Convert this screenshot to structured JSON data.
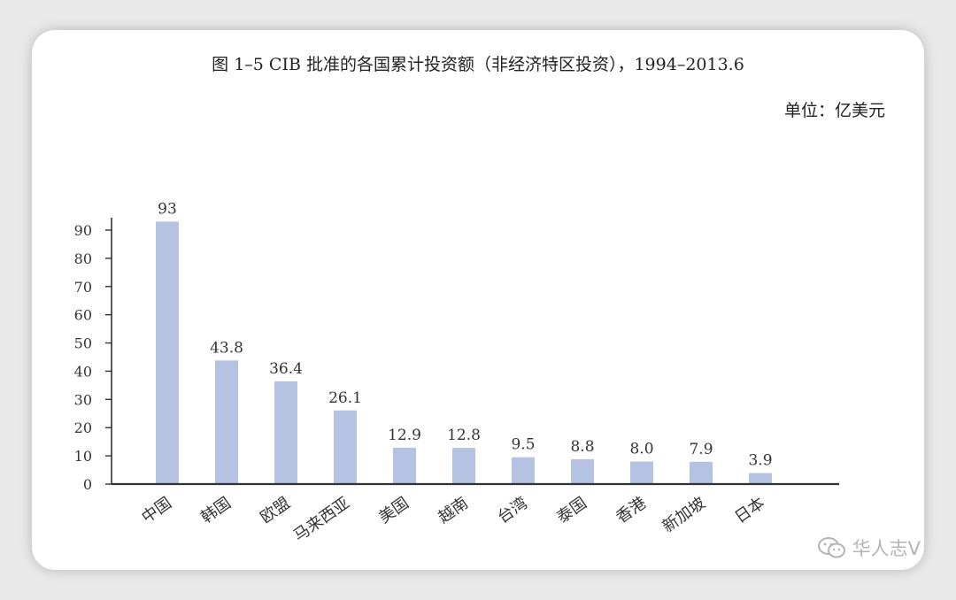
{
  "chart_data": {
    "type": "bar",
    "title": "图 1–5  CIB 批准的各国累计投资额（非经济特区投资），1994–2013.6",
    "unit": "单位：亿美元",
    "categories": [
      "中国",
      "韩国",
      "欧盟",
      "马来西亚",
      "美国",
      "越南",
      "台湾",
      "泰国",
      "香港",
      "新加坡",
      "日本"
    ],
    "values": [
      93,
      43.8,
      36.4,
      26.1,
      12.9,
      12.8,
      9.5,
      8.8,
      8.0,
      7.9,
      3.9
    ],
    "value_labels": [
      "93",
      "43.8",
      "36.4",
      "26.1",
      "12.9",
      "12.8",
      "9.5",
      "8.8",
      "8.0",
      "7.9",
      "3.9"
    ],
    "yticks": [
      0,
      10,
      20,
      30,
      40,
      50,
      60,
      70,
      80,
      90
    ],
    "ylim": [
      0,
      90
    ],
    "bar_color": "#b4c3e1",
    "axis_color": "#333333",
    "xlabel": "",
    "ylabel": "",
    "grid": false
  },
  "watermark": {
    "text": "华人志V",
    "icon": "wechat-icon"
  }
}
